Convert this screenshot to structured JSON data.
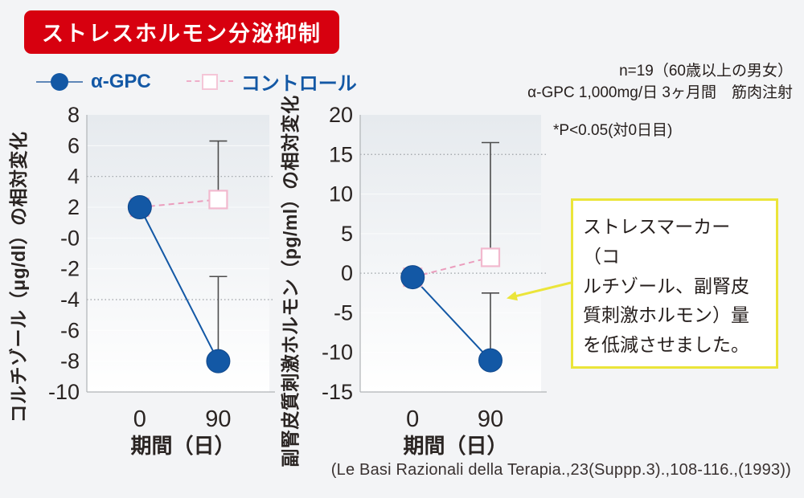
{
  "header": {
    "title": "ストレスホルモン分泌抑制",
    "banner_color": "#d7000f"
  },
  "legend": {
    "items": [
      {
        "label": "α-GPC",
        "marker": "circle",
        "color": "#1358a5"
      },
      {
        "label": "コントロール",
        "marker": "square",
        "color": "#efaec9"
      }
    ]
  },
  "info": {
    "line1": "n=19（60歳以上の男女）",
    "line2": "α-GPC 1,000mg/日 3ヶ月間　筋肉注射",
    "p_note": "*P<0.05(対0日目)"
  },
  "callout": {
    "text": "ストレスマーカー（コ\nルチゾール、副腎皮\n質刺激ホルモン）量\nを低減させました。"
  },
  "citation": "(Le Basi Razionali della Terapia.,23(Suppp.3).,108-116.,(1993))",
  "colors": {
    "accent_red": "#d7000f",
    "series_blue": "#1358a5",
    "series_pink": "#eb9dbd",
    "pink_square_border": "#f2b9ce",
    "error_bar": "#4c4c4c",
    "callout_yellow": "#ebe53a",
    "page_bg": "#f3f4f6"
  },
  "chart_data": [
    {
      "type": "line",
      "title": "",
      "ylabel": "コルチゾール（μg/dl）の相対変化",
      "xlabel": "期間（日）",
      "categories": [
        "0",
        "90"
      ],
      "ylim": [
        -10,
        8
      ],
      "yticks": [
        "8",
        "6",
        "4",
        "2",
        "-0",
        "-2",
        "-4",
        "-6",
        "-8",
        "-10"
      ],
      "dotted_gridlines": [
        4,
        -4
      ],
      "grid": "dotted-partial",
      "legend_position": "top-left-above",
      "series": [
        {
          "name": "α-GPC",
          "marker": "circle",
          "color": "#1358a5",
          "values": [
            2,
            -8
          ],
          "error_top": [
            null,
            -2.5
          ]
        },
        {
          "name": "コントロール",
          "marker": "square",
          "color": "#eb9dbd",
          "values": [
            2,
            2.5
          ],
          "error_top": [
            null,
            6.3
          ]
        }
      ]
    },
    {
      "type": "line",
      "title": "",
      "ylabel": "副腎皮質刺激ホルモン（pg/ml）の相対変化",
      "xlabel": "期間（日）",
      "categories": [
        "0",
        "90"
      ],
      "ylim": [
        -15,
        20
      ],
      "yticks": [
        "20",
        "15",
        "10",
        "5",
        "0",
        "-5",
        "-10",
        "-15"
      ],
      "dotted_gridlines": [
        15,
        0
      ],
      "grid": "dotted-partial",
      "legend_position": "top-left-above",
      "series": [
        {
          "name": "α-GPC",
          "marker": "circle",
          "color": "#1358a5",
          "values": [
            -0.5,
            -11
          ],
          "error_top": [
            null,
            -2.5
          ]
        },
        {
          "name": "コントロール",
          "marker": "square",
          "color": "#eb9dbd",
          "values": [
            -0.5,
            2
          ],
          "error_top": [
            null,
            16.5
          ]
        }
      ]
    }
  ]
}
